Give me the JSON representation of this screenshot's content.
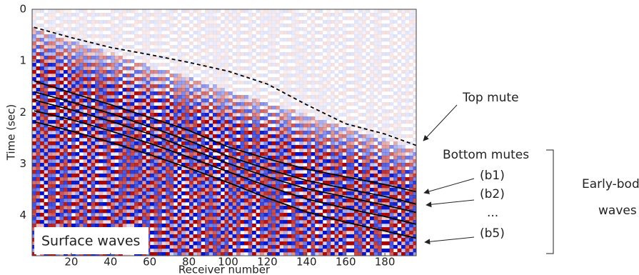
{
  "chart_data": {
    "type": "line",
    "xlabel": "Receiver number",
    "ylabel": "Time (sec)",
    "x": [
      1,
      20,
      40,
      60,
      80,
      100,
      120,
      140,
      160,
      180,
      196
    ],
    "xlim": [
      0,
      196
    ],
    "xticks": [
      20,
      40,
      60,
      80,
      100,
      120,
      140,
      160,
      180
    ],
    "ylim": [
      0,
      4.78
    ],
    "yticks": [
      0,
      1,
      2,
      3,
      4
    ],
    "y_inverted": true,
    "series": [
      {
        "color": "#000000",
        "dash": true,
        "values": [
          0.35,
          0.55,
          0.74,
          0.88,
          1.03,
          1.2,
          1.45,
          1.85,
          2.22,
          2.42,
          2.64
        ]
      },
      {
        "color": "#000000",
        "dash": false,
        "values": [
          1.39,
          1.62,
          1.85,
          2.1,
          2.35,
          2.67,
          2.9,
          3.1,
          3.25,
          3.4,
          3.54
        ]
      },
      {
        "color": "#000000",
        "dash": false,
        "values": [
          1.6,
          1.8,
          2.02,
          2.28,
          2.55,
          2.85,
          3.1,
          3.32,
          3.48,
          3.63,
          3.78
        ]
      },
      {
        "color": "#000000",
        "dash": false,
        "values": [
          1.76,
          1.95,
          2.17,
          2.42,
          2.7,
          2.99,
          3.25,
          3.48,
          3.64,
          3.8,
          3.94
        ]
      },
      {
        "color": "#000000",
        "dash": false,
        "values": [
          1.97,
          2.14,
          2.36,
          2.6,
          2.87,
          3.15,
          3.43,
          3.68,
          3.86,
          4.02,
          4.17
        ]
      },
      {
        "color": "#000000",
        "dash": false,
        "values": [
          2.18,
          2.36,
          2.58,
          2.82,
          3.08,
          3.36,
          3.66,
          3.93,
          4.13,
          4.3,
          4.44
        ]
      }
    ],
    "annotations": {
      "surface": "Surface waves",
      "top_mute": "Top mute",
      "bottom_mutes": "Bottom mutes",
      "b1": "(b1)",
      "b2": "(b2)",
      "dots": "...",
      "b5": "(b5)",
      "early_1": "Early-body",
      "early_2": "waves"
    }
  }
}
